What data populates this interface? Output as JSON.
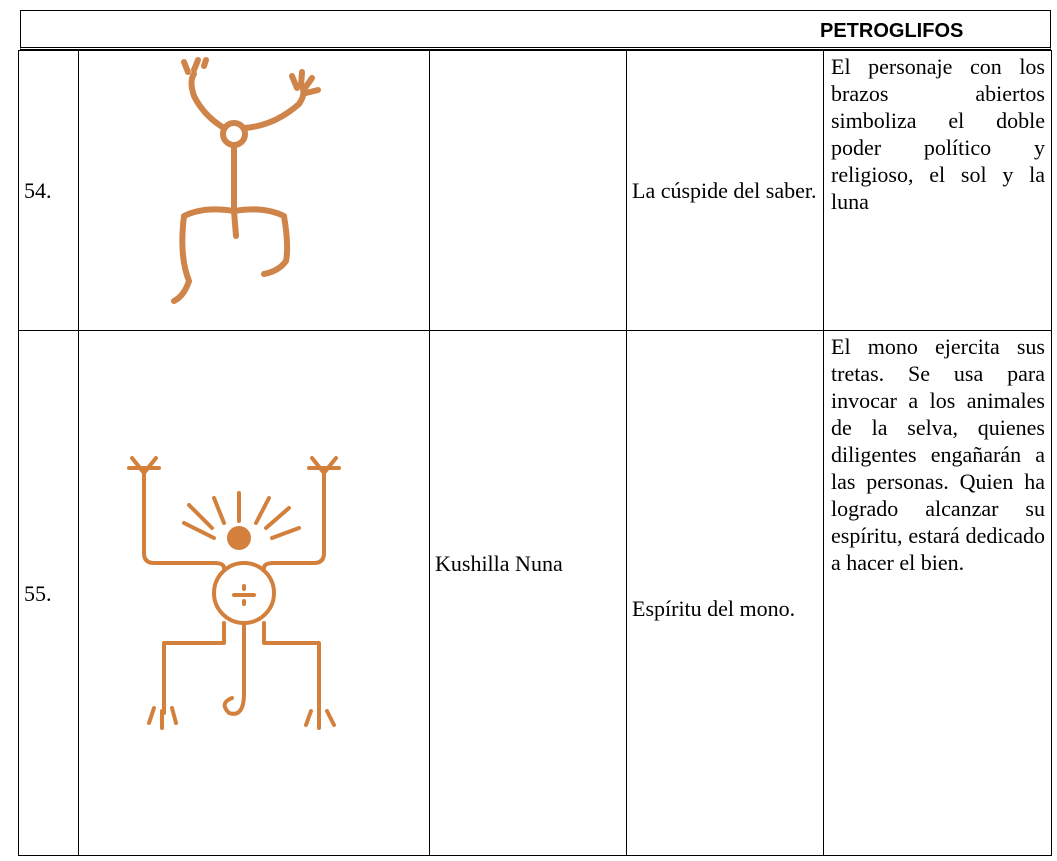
{
  "header": {
    "title": "PETROGLIFOS"
  },
  "table": {
    "rows": [
      {
        "number": "54.",
        "meaning": "La cúspide del saber.",
        "description": "El personaje con los brazos abiertos simboliza el doble poder político y religioso, el sol y la luna"
      },
      {
        "number": "55.",
        "name": "Kushilla Nuna",
        "meaning": "Espíritu del mono.",
        "description": "El mono ejercita sus tretas. Se usa para invocar a los animales de la selva, quienes diligentes engañarán a las personas. Quien ha logrado alcanzar su espíritu, estará dedicado a hacer el bien."
      }
    ]
  }
}
